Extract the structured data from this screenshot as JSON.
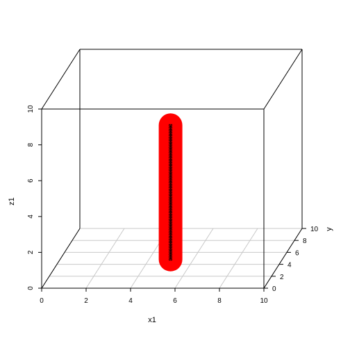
{
  "chart_data": {
    "type": "scatter",
    "title": "",
    "xlabel": "x1",
    "ylabel": "y",
    "zlabel": "z1",
    "xlim": [
      0,
      10
    ],
    "ylim": [
      0,
      10
    ],
    "zlim": [
      0,
      10
    ],
    "x_ticks": [
      "0",
      "2",
      "4",
      "6",
      "8",
      "10"
    ],
    "y_ticks": [
      "0",
      "2",
      "4",
      "6",
      "8",
      "10"
    ],
    "z_ticks": [
      "0",
      "2",
      "4",
      "6",
      "8",
      "10"
    ],
    "grid": true,
    "box": true,
    "highlight_color": "#ff0000",
    "point_color": "#000000",
    "points": {
      "x": 5.8,
      "y": 0,
      "z_from": 1.6,
      "z_to": 9.1,
      "count": 55
    }
  }
}
